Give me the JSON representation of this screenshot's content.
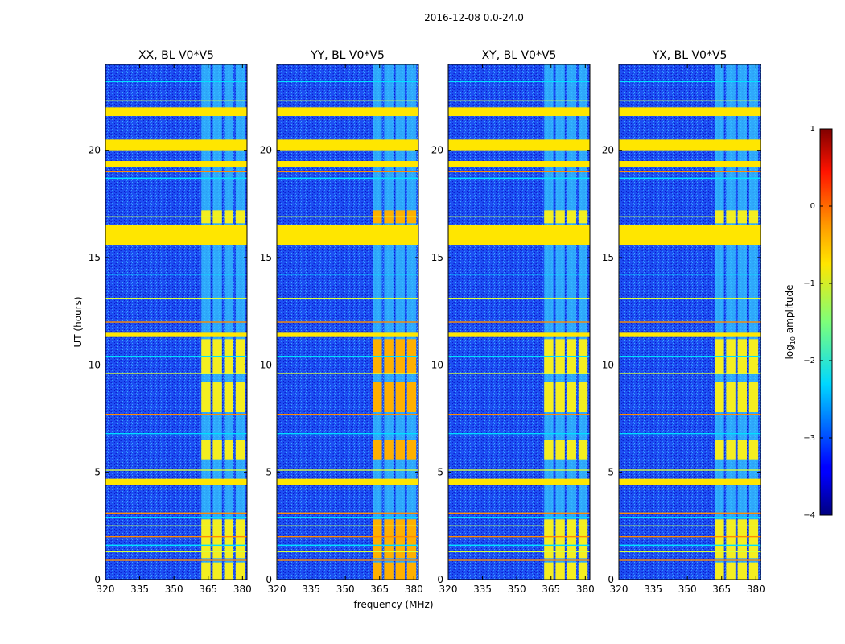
{
  "figure": {
    "suptitle": "2016-12-08 0.0-24.0"
  },
  "chart_data": {
    "type": "heatmap",
    "xlabel": "frequency (MHz)",
    "ylabel": "UT (hours)",
    "xlim": [
      320,
      382
    ],
    "ylim": [
      0,
      24
    ],
    "x_ticks": [
      320,
      335,
      350,
      365,
      380
    ],
    "y_ticks": [
      0,
      5,
      10,
      15,
      20
    ],
    "panels": [
      {
        "title": "XX, BL V0*V5"
      },
      {
        "title": "YY, BL V0*V5"
      },
      {
        "title": "XY, BL V0*V5"
      },
      {
        "title": "YX, BL V0*V5"
      }
    ],
    "colorbar": {
      "label": "log",
      "label_sub": "10",
      "label_rest": " amplitude",
      "range": [
        -4,
        1
      ],
      "ticks": [
        1,
        0,
        -1,
        -2,
        -3,
        -4
      ],
      "tick_labels": [
        "1",
        "0",
        "−1",
        "−2",
        "−3",
        "−4"
      ],
      "colormap": "jet"
    },
    "features": {
      "background_log_amplitude": -3.2,
      "band_range_mhz": [
        362,
        381
      ],
      "band_column_edges_mhz": [
        362,
        366,
        367,
        371,
        372,
        376,
        377,
        381
      ],
      "flagged_rows_ut_hours": [
        [
          4.4,
          4.7
        ],
        [
          11.3,
          11.5
        ],
        [
          15.6,
          16.5
        ],
        [
          19.2,
          19.5
        ],
        [
          20.0,
          20.5
        ],
        [
          21.6,
          22.0
        ]
      ],
      "flagged_log_amplitude": -1.3,
      "high_blocks_ut_hours": [
        [
          0.0,
          0.8
        ],
        [
          1.0,
          2.8
        ],
        [
          5.6,
          6.5
        ],
        [
          7.8,
          9.2
        ],
        [
          9.6,
          11.2
        ],
        [
          16.6,
          17.2
        ]
      ],
      "rfi_lines_ut_hours": [
        0.9,
        1.3,
        1.6,
        2.0,
        2.5,
        2.9,
        3.1,
        5.1,
        6.8,
        7.7,
        9.6,
        10.4,
        12.0,
        13.1,
        14.2,
        16.0,
        16.9,
        18.7,
        19.0,
        22.3,
        23.2
      ]
    }
  }
}
